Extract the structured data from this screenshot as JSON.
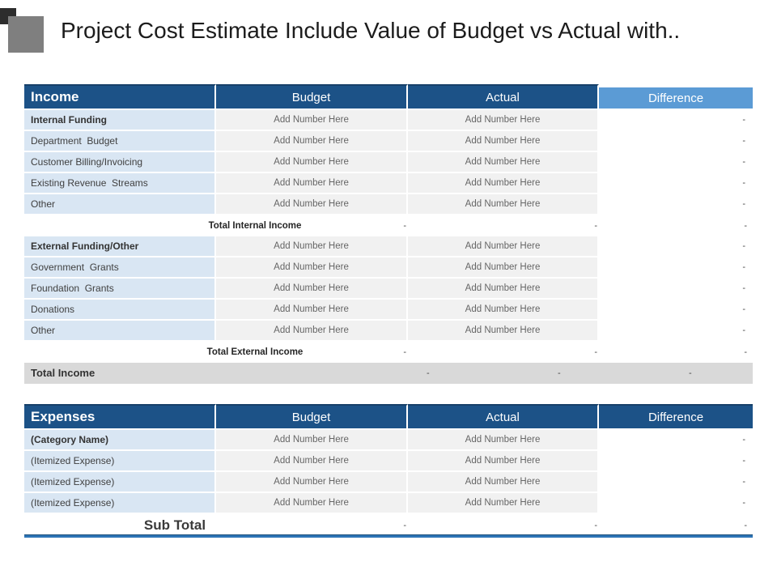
{
  "title": "Project Cost Estimate Include Value of Budget vs Actual with..",
  "income": {
    "header": {
      "title": "Income",
      "budget": "Budget",
      "actual": "Actual",
      "difference": "Difference"
    },
    "rows": [
      {
        "label": "Internal Funding",
        "budget": "Add Number Here",
        "actual": "Add Number Here",
        "difference": "-"
      },
      {
        "label": "Department  Budget",
        "budget": "Add Number Here",
        "actual": "Add Number Here",
        "difference": "-"
      },
      {
        "label": "Customer Billing/Invoicing",
        "budget": "Add Number Here",
        "actual": "Add Number Here",
        "difference": "-"
      },
      {
        "label": "Existing Revenue  Streams",
        "budget": "Add Number Here",
        "actual": "Add Number Here",
        "difference": "-"
      },
      {
        "label": "Other",
        "budget": "Add Number Here",
        "actual": "Add Number Here",
        "difference": "-"
      },
      {
        "label": "External Funding/Other",
        "budget": "Add Number Here",
        "actual": "Add Number Here",
        "difference": "-"
      },
      {
        "label": "Government  Grants",
        "budget": "Add Number Here",
        "actual": "Add Number Here",
        "difference": "-"
      },
      {
        "label": "Foundation  Grants",
        "budget": "Add Number Here",
        "actual": "Add Number Here",
        "difference": "-"
      },
      {
        "label": "Donations",
        "budget": "Add Number Here",
        "actual": "Add Number Here",
        "difference": "-"
      },
      {
        "label": "Other",
        "budget": "Add Number Here",
        "actual": "Add Number Here",
        "difference": "-"
      }
    ],
    "total_internal": {
      "label": "Total Internal Income",
      "budget": "-",
      "actual": "-",
      "difference": "-"
    },
    "total_external": {
      "label": "Total External Income",
      "budget": "-",
      "actual": "-",
      "difference": "-"
    },
    "total_income": {
      "label": "Total Income",
      "budget": "-",
      "actual": "-",
      "difference": "-"
    }
  },
  "expenses": {
    "header": {
      "title": "Expenses",
      "budget": "Budget",
      "actual": "Actual",
      "difference": "Difference"
    },
    "rows": [
      {
        "label": "(Category Name)",
        "budget": "Add Number Here",
        "actual": "Add Number Here",
        "difference": "-"
      },
      {
        "label": "(Itemized Expense)",
        "budget": "Add Number Here",
        "actual": "Add Number Here",
        "difference": "-"
      },
      {
        "label": "(Itemized Expense)",
        "budget": "Add Number Here",
        "actual": "Add Number Here",
        "difference": "-"
      },
      {
        "label": "(Itemized Expense)",
        "budget": "Add Number Here",
        "actual": "Add Number Here",
        "difference": "-"
      }
    ],
    "sub_total": {
      "label": "Sub Total",
      "budget": "-",
      "actual": "-",
      "difference": "-"
    }
  },
  "colors": {
    "header_blue": "#1C5287",
    "difference_header_blue": "#5B9BD5",
    "label_column_blue": "#D9E6F3",
    "cell_gray": "#F1F1F1",
    "total_row_gray": "#D9D9D9",
    "accent_line_blue": "#2E75B6"
  }
}
